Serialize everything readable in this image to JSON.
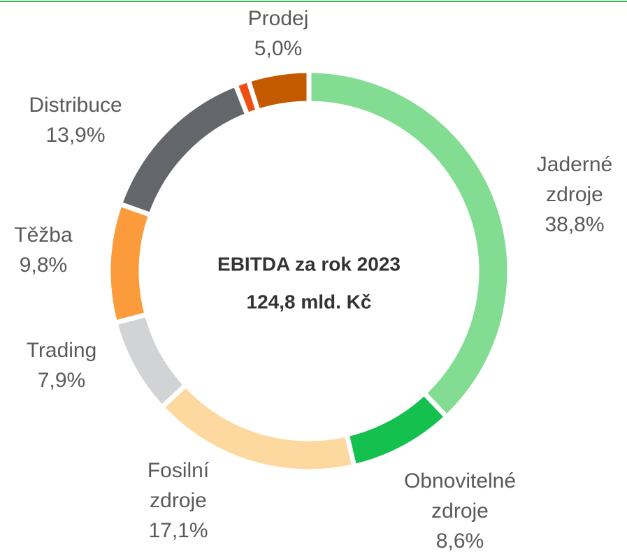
{
  "chart_data": {
    "type": "donut",
    "center_text": [
      "EBITDA za rok 2023",
      "124,8 mld. Kč"
    ],
    "categories": [
      "Jaderné zdroje",
      "Obnovitelné zdroje",
      "Fosilní zdroje",
      "Trading",
      "Těžba",
      "Distribuce",
      null,
      "Prodej"
    ],
    "values": [
      38.8,
      8.6,
      17.1,
      7.9,
      9.8,
      13.9,
      1.1,
      5.0
    ],
    "value_labels": [
      "38,8%",
      "8,6%",
      "17,1%",
      "7,9%",
      "9,8%",
      "13,9%",
      null,
      "5,0%"
    ],
    "colors": [
      "#82dc91",
      "#14c04e",
      "#fdd9a0",
      "#d2d3d5",
      "#fb9b3c",
      "#63666a",
      "#f04e12",
      "#c45a00"
    ]
  }
}
